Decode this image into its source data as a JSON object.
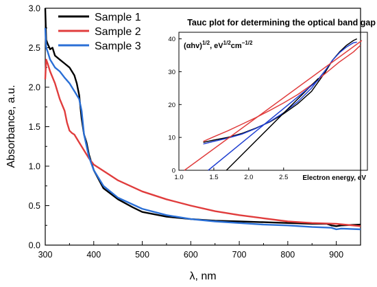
{
  "chart_data": [
    {
      "type": "line",
      "title": "",
      "xlabel": "λ, nm",
      "ylabel": "Absorbance, a.u.",
      "xlim": [
        300,
        950
      ],
      "ylim": [
        0.0,
        3.0
      ],
      "xticks": [
        "300",
        "400",
        "500",
        "600",
        "700",
        "800",
        "900"
      ],
      "yticks": [
        "0.0",
        "0.5",
        "1.0",
        "1.5",
        "2.0",
        "2.5",
        "3.0"
      ],
      "grid": false,
      "legend": "top-left",
      "series": [
        {
          "name": "Sample 1",
          "color": "#000000",
          "x": [
            300,
            302,
            305,
            310,
            315,
            320,
            330,
            340,
            350,
            360,
            365,
            370,
            375,
            380,
            385,
            390,
            400,
            420,
            450,
            480,
            500,
            550,
            600,
            650,
            700,
            750,
            800,
            850,
            880,
            890,
            900,
            910,
            950
          ],
          "y": [
            3.0,
            2.6,
            2.55,
            2.48,
            2.5,
            2.4,
            2.35,
            2.3,
            2.25,
            2.15,
            2.05,
            1.9,
            1.6,
            1.4,
            1.3,
            1.15,
            0.95,
            0.72,
            0.58,
            0.48,
            0.42,
            0.36,
            0.33,
            0.31,
            0.3,
            0.29,
            0.28,
            0.27,
            0.27,
            0.25,
            0.24,
            0.25,
            0.26
          ]
        },
        {
          "name": "Sample 2",
          "color": "#e03c3c",
          "x": [
            300,
            302,
            305,
            310,
            320,
            330,
            340,
            345,
            350,
            355,
            360,
            365,
            370,
            380,
            390,
            400,
            450,
            500,
            550,
            600,
            650,
            700,
            750,
            800,
            850,
            900,
            950
          ],
          "y": [
            2.1,
            2.35,
            2.3,
            2.2,
            2.05,
            1.85,
            1.7,
            1.55,
            1.45,
            1.42,
            1.4,
            1.35,
            1.3,
            1.2,
            1.1,
            1.02,
            0.82,
            0.68,
            0.58,
            0.5,
            0.43,
            0.38,
            0.34,
            0.3,
            0.28,
            0.27,
            0.24
          ]
        },
        {
          "name": "Sample 3",
          "color": "#2a6fd6",
          "x": [
            300,
            302,
            305,
            310,
            320,
            330,
            340,
            350,
            360,
            370,
            375,
            380,
            390,
            400,
            420,
            450,
            500,
            550,
            600,
            650,
            700,
            750,
            800,
            850,
            890,
            900,
            910,
            950
          ],
          "y": [
            2.75,
            2.5,
            2.45,
            2.35,
            2.25,
            2.2,
            2.12,
            2.05,
            1.95,
            1.85,
            1.7,
            1.4,
            1.12,
            0.95,
            0.75,
            0.6,
            0.46,
            0.38,
            0.33,
            0.3,
            0.28,
            0.26,
            0.25,
            0.23,
            0.22,
            0.2,
            0.21,
            0.2
          ]
        }
      ]
    },
    {
      "type": "line",
      "title": "Tauc plot for determining the optical band gap",
      "xlabel": "Electron energy, eV",
      "ylabel": "(αhv)^1/2, eV^1/2cm^−1/2",
      "ylabel_parts": {
        "base": "(αhv)",
        "exp1": "1/2",
        "mid": ", eV",
        "exp2": "1/2",
        "mid2": "cm",
        "exp3": "−1/2"
      },
      "xlim": [
        1.0,
        3.7
      ],
      "ylim": [
        0,
        42
      ],
      "xticks": [
        "1.0",
        "1.5",
        "2.0",
        "2.5"
      ],
      "yticks": [
        "0",
        "10",
        "20",
        "30",
        "40"
      ],
      "grid": false,
      "series": [
        {
          "color": "#000000",
          "x": [
            1.35,
            1.5,
            1.7,
            1.9,
            2.1,
            2.3,
            2.5,
            2.7,
            2.9,
            3.0,
            3.1,
            3.2,
            3.3,
            3.4,
            3.5,
            3.55
          ],
          "y": [
            8.5,
            9.2,
            10.0,
            11.2,
            12.8,
            14.7,
            17.2,
            20.2,
            24.0,
            27.0,
            30.0,
            33.5,
            36.0,
            38.0,
            39.5,
            40.0
          ]
        },
        {
          "color": "#e03c3c",
          "x": [
            1.35,
            1.5,
            1.7,
            1.9,
            2.1,
            2.3,
            2.5,
            2.7,
            2.9,
            3.1,
            3.3,
            3.5,
            3.6
          ],
          "y": [
            8.8,
            10.2,
            12.0,
            14.0,
            16.0,
            18.2,
            20.5,
            23.0,
            26.0,
            29.5,
            33.0,
            36.0,
            38.0
          ]
        },
        {
          "color": "#1f3fd1",
          "x": [
            1.35,
            1.5,
            1.7,
            1.9,
            2.1,
            2.3,
            2.5,
            2.7,
            2.9,
            3.0,
            3.1,
            3.2,
            3.3,
            3.4,
            3.5,
            3.55
          ],
          "y": [
            8.0,
            8.8,
            9.8,
            11.0,
            12.7,
            14.8,
            17.5,
            20.8,
            25.0,
            27.8,
            30.5,
            33.5,
            35.8,
            37.5,
            38.8,
            39.0
          ]
        },
        {
          "color": "#000000",
          "x": [
            1.68,
            3.0
          ],
          "y": [
            0,
            28
          ]
        },
        {
          "color": "#e03c3c",
          "x": [
            1.08,
            3.62
          ],
          "y": [
            0,
            39.5
          ]
        },
        {
          "color": "#1f3fd1",
          "x": [
            1.42,
            3.0
          ],
          "y": [
            0,
            27.5
          ]
        }
      ]
    }
  ]
}
